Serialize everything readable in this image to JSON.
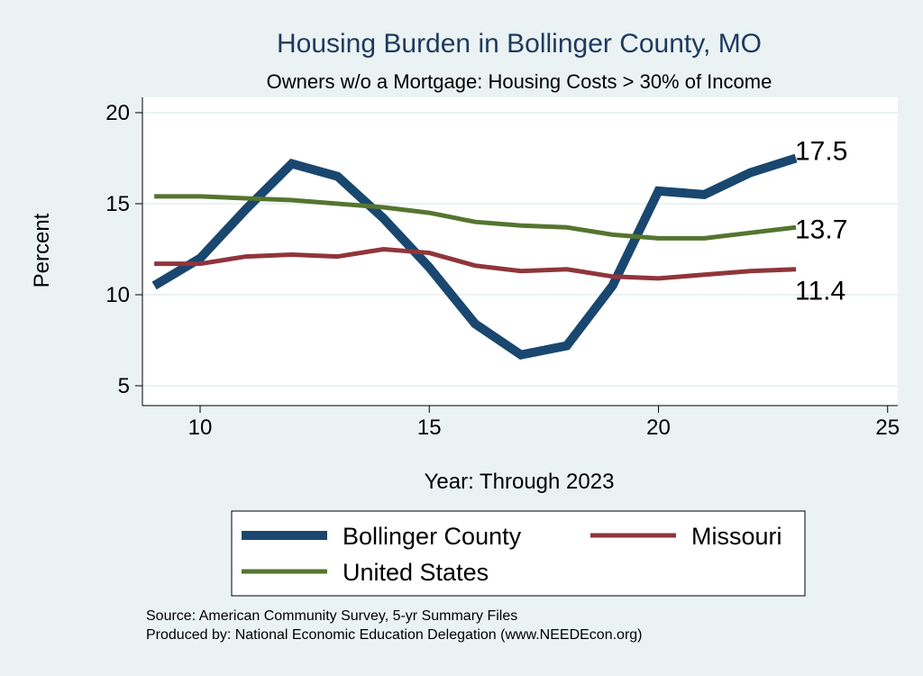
{
  "chart_data": {
    "type": "line",
    "title": "Housing Burden in Bollinger County, MO",
    "subtitle": "Owners w/o a Mortgage: Housing Costs > 30% of Income",
    "xlabel": "Year: Through 2023",
    "ylabel": "Percent",
    "xlim": [
      8.7,
      25.3
    ],
    "ylim": [
      4.2,
      20.6
    ],
    "xticks": [
      "10",
      "15",
      "20",
      "25"
    ],
    "yticks": [
      "5",
      "10",
      "15",
      "20"
    ],
    "grid": true,
    "legend_position": "bottom",
    "x": [
      9,
      10,
      11,
      12,
      13,
      14,
      15,
      16,
      17,
      18,
      19,
      20,
      21,
      22,
      23
    ],
    "series": [
      {
        "name": "Bollinger County",
        "color": "#1a476f",
        "values": [
          10.5,
          12.0,
          14.7,
          17.2,
          16.5,
          14.2,
          11.5,
          8.4,
          6.7,
          7.2,
          10.5,
          15.7,
          15.5,
          16.7,
          17.5
        ],
        "end_label": "17.5"
      },
      {
        "name": "Missouri",
        "color": "#90353b",
        "values": [
          11.7,
          11.7,
          12.1,
          12.2,
          12.1,
          12.5,
          12.3,
          11.6,
          11.3,
          11.4,
          11.0,
          10.9,
          11.1,
          11.3,
          11.4
        ],
        "end_label": "11.4"
      },
      {
        "name": "United States",
        "color": "#55752f",
        "values": [
          15.4,
          15.4,
          15.3,
          15.2,
          15.0,
          14.8,
          14.5,
          14.0,
          13.8,
          13.7,
          13.3,
          13.1,
          13.1,
          13.4,
          13.7
        ],
        "end_label": "13.7"
      }
    ]
  },
  "notes": {
    "source": "Source: American Community Survey, 5-yr Summary Files",
    "produced": "Produced by: National Economic Education Delegation (www.NEEDEcon.org)"
  }
}
